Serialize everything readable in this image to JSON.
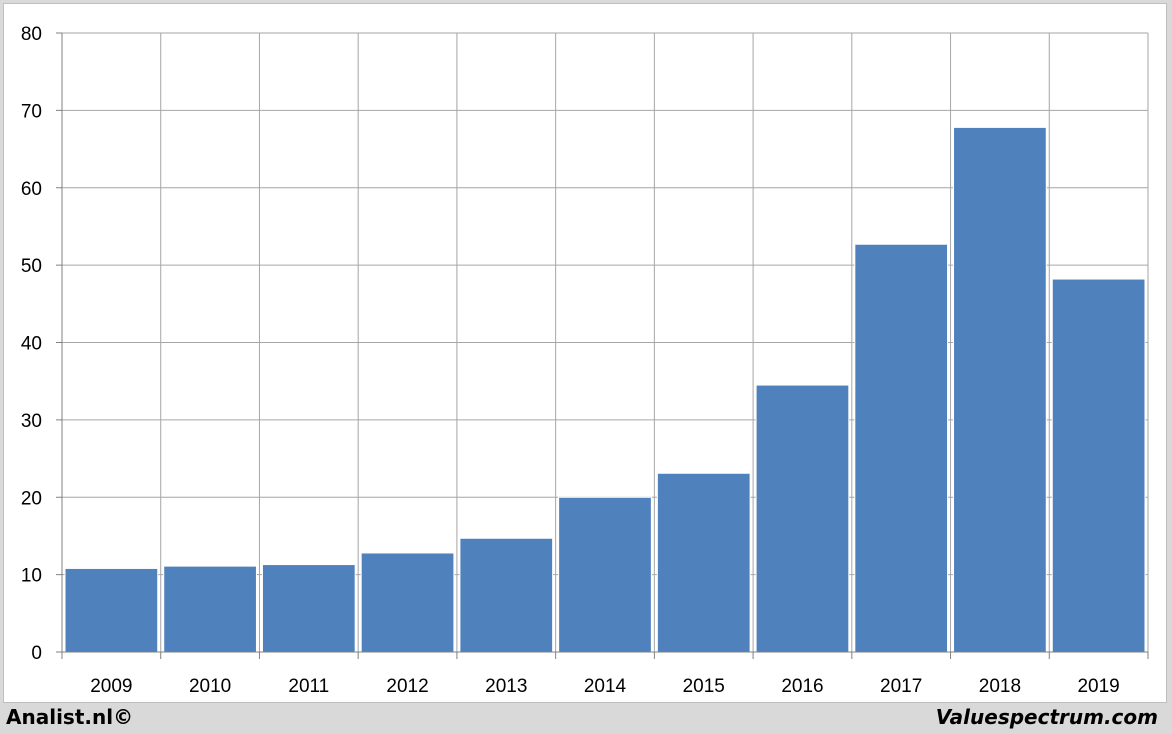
{
  "chart_data": {
    "type": "bar",
    "categories": [
      "2009",
      "2010",
      "2011",
      "2012",
      "2013",
      "2014",
      "2015",
      "2016",
      "2017",
      "2018",
      "2019"
    ],
    "values": [
      10.8,
      11.1,
      11.3,
      12.8,
      14.7,
      20.0,
      23.1,
      34.5,
      52.7,
      67.8,
      48.2
    ],
    "title": "",
    "xlabel": "",
    "ylabel": "",
    "ylim": [
      0,
      80
    ],
    "yticks": [
      "0",
      "10",
      "20",
      "30",
      "40",
      "50",
      "60",
      "70",
      "80"
    ],
    "grid": true,
    "legend": "none",
    "bar_color": "#4f81bd",
    "grid_color": "#a6a6a6"
  },
  "footer": {
    "left_text": "Analist.nl©",
    "right_text": "Valuespectrum.com"
  }
}
